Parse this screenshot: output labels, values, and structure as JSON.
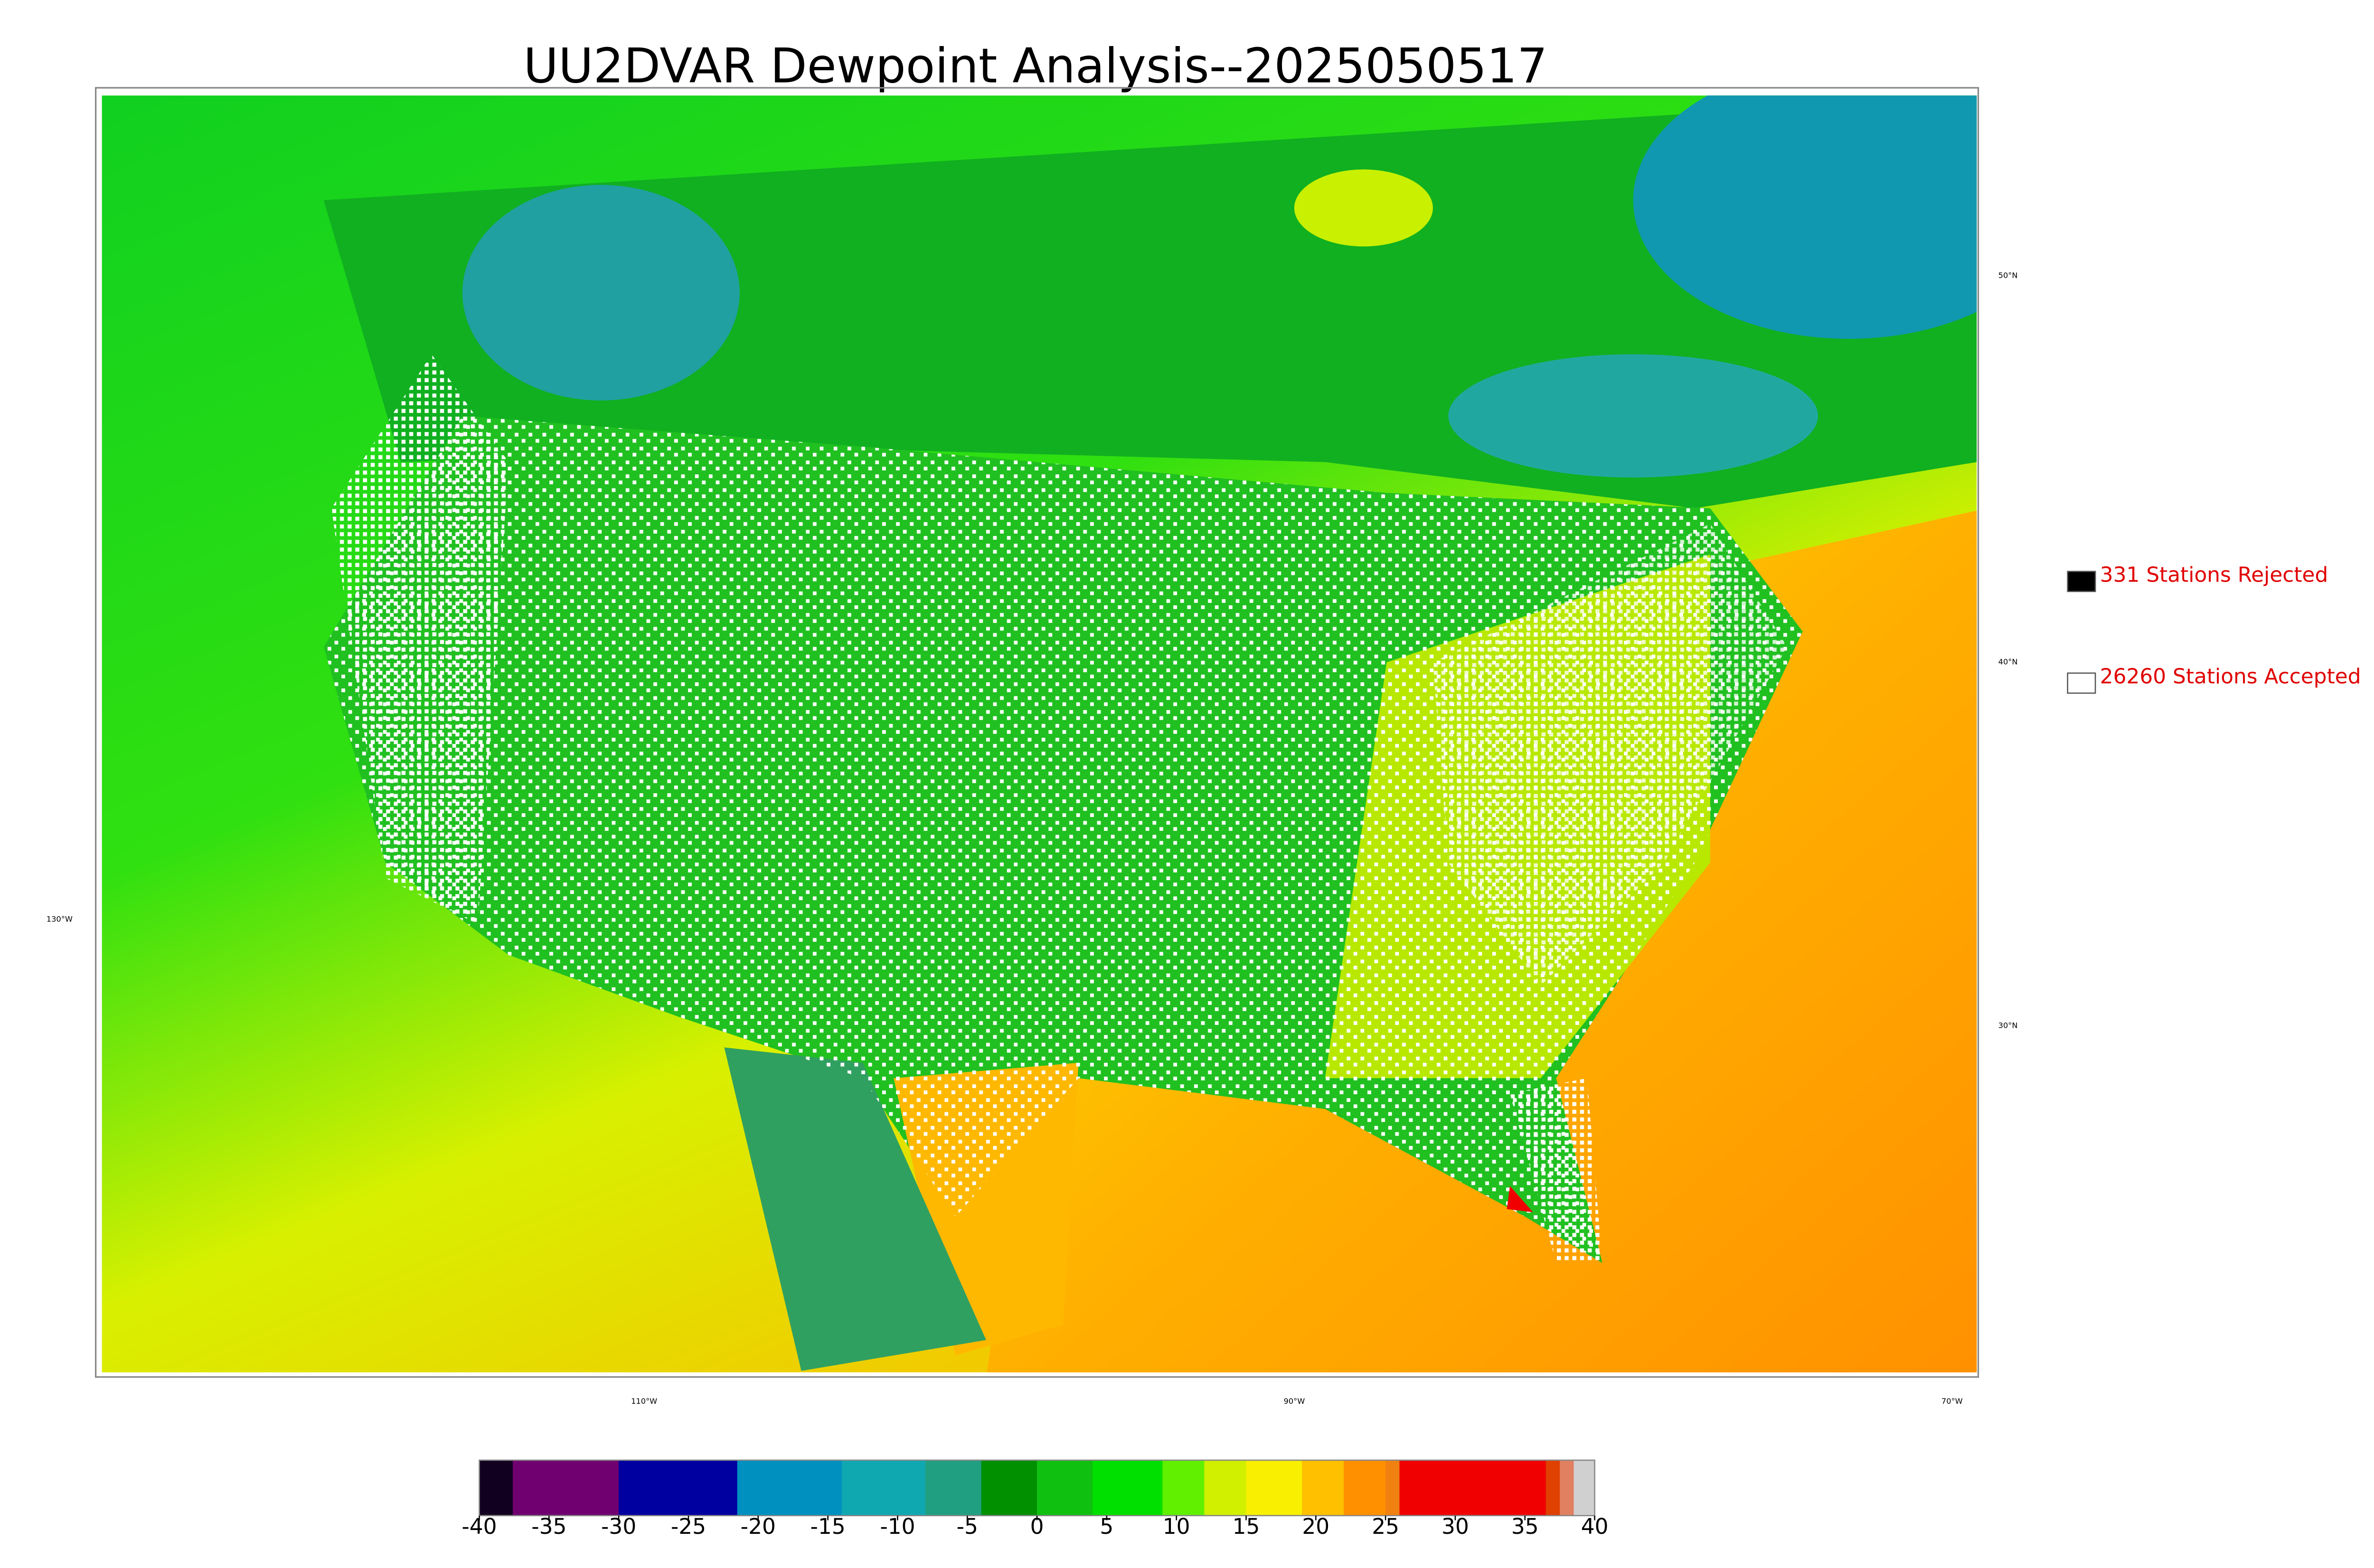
{
  "chart_data": {
    "type": "map",
    "title": "UU2DVAR Dewpoint Analysis--2025050517",
    "lat_labels": [
      "50°N",
      "40°N",
      "30°N"
    ],
    "lon_labels": [
      "130°W",
      "110°W",
      "90°W",
      "70°W"
    ],
    "legend": [
      {
        "name": "331 Stations Rejected",
        "color": "#000000"
      },
      {
        "name": "26260 Stations Accepted",
        "color": "#ffffff"
      }
    ],
    "colorbar": {
      "range": [
        -40,
        40
      ],
      "ticks": [
        -40,
        -35,
        -30,
        -25,
        -20,
        -15,
        -10,
        -5,
        0,
        5,
        10,
        15,
        20,
        25,
        30,
        35,
        40
      ],
      "segments": [
        {
          "from": -40,
          "to": -37.6,
          "color": "#120020"
        },
        {
          "from": -37.6,
          "to": -30,
          "color": "#700070"
        },
        {
          "from": -30,
          "to": -21.5,
          "color": "#0000a0"
        },
        {
          "from": -21.5,
          "to": -14,
          "color": "#0090c0"
        },
        {
          "from": -14,
          "to": -8,
          "color": "#10a8b0"
        },
        {
          "from": -8,
          "to": -4,
          "color": "#20a080"
        },
        {
          "from": -4,
          "to": 0,
          "color": "#009000"
        },
        {
          "from": 0,
          "to": 4,
          "color": "#10c010"
        },
        {
          "from": 4,
          "to": 9,
          "color": "#00e000"
        },
        {
          "from": 9,
          "to": 12,
          "color": "#60f000"
        },
        {
          "from": 12,
          "to": 15,
          "color": "#d0f000"
        },
        {
          "from": 15,
          "to": 19,
          "color": "#f8f000"
        },
        {
          "from": 19,
          "to": 22,
          "color": "#ffc000"
        },
        {
          "from": 22,
          "to": 25,
          "color": "#ff9000"
        },
        {
          "from": 25,
          "to": 26,
          "color": "#f08010"
        },
        {
          "from": 26,
          "to": 36.5,
          "color": "#f00000"
        },
        {
          "from": 36.5,
          "to": 37.5,
          "color": "#e04000"
        },
        {
          "from": 37.5,
          "to": 38.5,
          "color": "#e08060"
        },
        {
          "from": 38.5,
          "to": 40,
          "color": "#d0d0d0"
        }
      ]
    }
  }
}
